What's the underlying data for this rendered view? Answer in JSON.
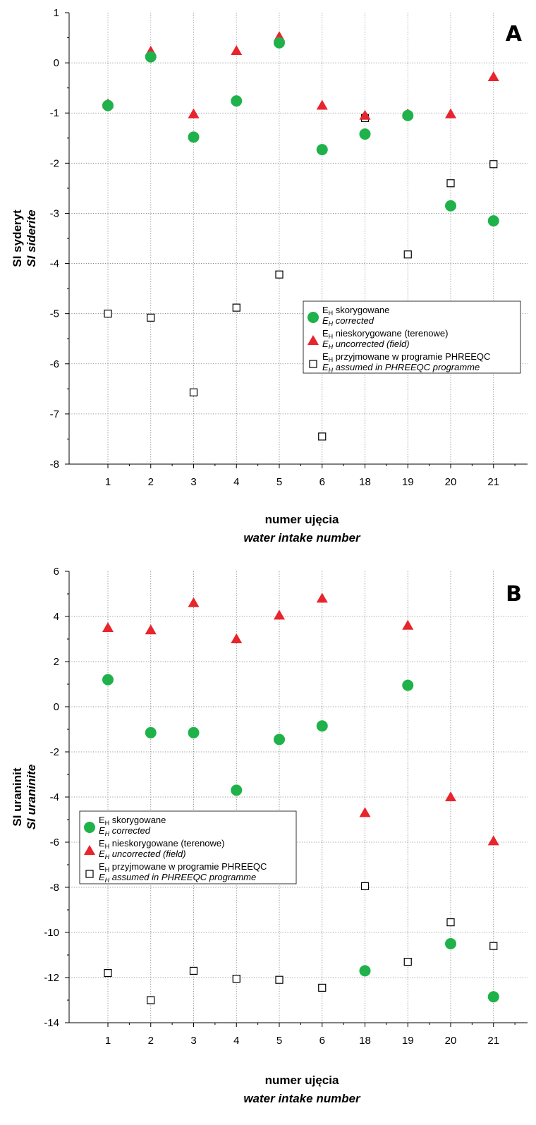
{
  "chart_data": [
    {
      "type": "scatter",
      "panel_label": "A",
      "categories": [
        "1",
        "2",
        "3",
        "4",
        "5",
        "6",
        "18",
        "19",
        "20",
        "21"
      ],
      "ylabel": "SI syderyt",
      "ylabel_en": "SI siderite",
      "xlabel": "numer ujęcia",
      "xlabel_en": "water intake number",
      "ylim": [
        -8,
        1
      ],
      "yticks": [
        1,
        0,
        -1,
        -2,
        -3,
        -4,
        -5,
        -6,
        -7,
        -8
      ],
      "grid": true,
      "legend_position": "middle-right",
      "series": [
        {
          "key": "corrected",
          "marker": "circle",
          "color": "#1fb24a",
          "values": [
            -0.85,
            0.12,
            -1.48,
            -0.76,
            0.4,
            -1.73,
            -1.42,
            -1.05,
            -2.85,
            -3.15
          ]
        },
        {
          "key": "uncorrected",
          "marker": "triangle",
          "color": "#e8242c",
          "values": [
            -0.82,
            0.23,
            -1.02,
            0.24,
            0.52,
            -0.85,
            -1.05,
            -1.02,
            -1.02,
            -0.28
          ]
        },
        {
          "key": "assumed",
          "marker": "square",
          "color": "#000000",
          "values": [
            -5.0,
            -5.08,
            -6.57,
            -4.88,
            -4.22,
            -7.45,
            -1.1,
            -3.82,
            -2.4,
            -2.02
          ]
        }
      ]
    },
    {
      "type": "scatter",
      "panel_label": "B",
      "categories": [
        "1",
        "2",
        "3",
        "4",
        "5",
        "6",
        "18",
        "19",
        "20",
        "21"
      ],
      "ylabel": "SI uraninit",
      "ylabel_en": "SI uraninite",
      "xlabel": "numer ujęcia",
      "xlabel_en": "water intake number",
      "ylim": [
        -14,
        6
      ],
      "yticks": [
        6,
        4,
        2,
        0,
        -2,
        -4,
        -6,
        -8,
        -10,
        -12,
        -14
      ],
      "grid": true,
      "legend_position": "middle-left",
      "series": [
        {
          "key": "corrected",
          "marker": "circle",
          "color": "#1fb24a",
          "values": [
            1.2,
            -1.15,
            -1.15,
            -3.7,
            -1.45,
            -0.85,
            -11.7,
            0.95,
            -10.5,
            -12.85
          ]
        },
        {
          "key": "uncorrected",
          "marker": "triangle",
          "color": "#e8242c",
          "values": [
            3.5,
            3.4,
            4.6,
            3.0,
            4.05,
            4.8,
            -4.7,
            3.6,
            -4.0,
            -5.95
          ]
        },
        {
          "key": "assumed",
          "marker": "square",
          "color": "#000000",
          "values": [
            -11.8,
            -13.0,
            -11.7,
            -12.05,
            -12.1,
            -12.45,
            -7.95,
            -11.3,
            -9.55,
            -10.6
          ]
        }
      ]
    }
  ],
  "legend": {
    "items": [
      {
        "key": "corrected",
        "pl_sub": "skorygowane",
        "en_sub": "corrected"
      },
      {
        "key": "uncorrected",
        "pl_sub": "nieskorygowane (terenowe)",
        "en_sub": "uncorrected (field)"
      },
      {
        "key": "assumed",
        "pl_sub": "przyjmowane w programie PHREEQC",
        "en_sub": "assumed in PHREEQC programme"
      }
    ],
    "symbol_main": "E",
    "symbol_sub": "H"
  }
}
